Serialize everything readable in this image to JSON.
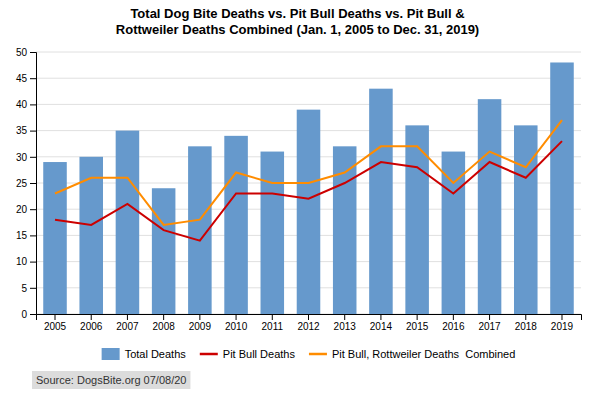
{
  "chart_data": {
    "type": "bar",
    "title": "Total Dog Bite Deaths vs. Pit Bull Deaths vs. Pit Bull &\nRottweiler Deaths Combined (Jan. 1, 2005 to Dec. 31, 2019)",
    "categories": [
      "2005",
      "2006",
      "2007",
      "2008",
      "2009",
      "2010",
      "2011",
      "2012",
      "2013",
      "2014",
      "2015",
      "2016",
      "2017",
      "2018",
      "2019"
    ],
    "series": [
      {
        "name": "Total Deaths",
        "type": "bar",
        "color": "#6699CC",
        "values": [
          29,
          30,
          35,
          24,
          32,
          34,
          31,
          39,
          32,
          43,
          36,
          31,
          41,
          36,
          48
        ]
      },
      {
        "name": "Pit Bull Deaths",
        "type": "line",
        "color": "#CC0000",
        "values": [
          18,
          17,
          21,
          16,
          14,
          23,
          23,
          22,
          25,
          29,
          28,
          23,
          29,
          26,
          33
        ]
      },
      {
        "name": "Pit Bull, Rottweiler Deaths  Combined",
        "type": "line",
        "color": "#FF8C00",
        "values": [
          23,
          26,
          26,
          17,
          18,
          27,
          25,
          25,
          27,
          32,
          32,
          25,
          31,
          28,
          37
        ]
      }
    ],
    "ylim": [
      0,
      50
    ],
    "yticks": [
      0,
      5,
      10,
      15,
      20,
      25,
      30,
      35,
      40,
      45,
      50
    ],
    "grid": true,
    "legend": "bottom",
    "annotations": [
      "Source: DogsBite.org 07/08/20"
    ]
  }
}
